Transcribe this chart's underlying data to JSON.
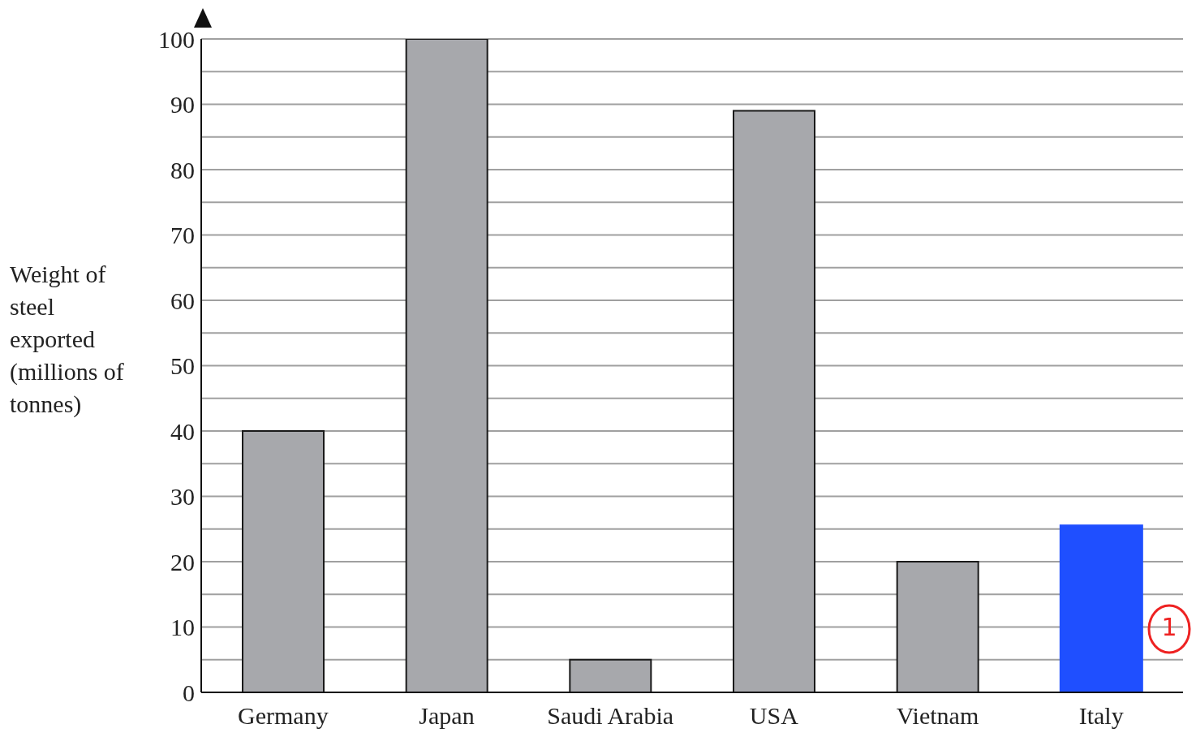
{
  "chart_data": {
    "type": "bar",
    "ylabel": "Weight of steel exported (millions of tonnes)",
    "categories": [
      "Germany",
      "Japan",
      "Saudi Arabia",
      "USA",
      "Vietnam",
      "Italy"
    ],
    "values": [
      40,
      100,
      5,
      89,
      20,
      25.5
    ],
    "colors": [
      "#a7a8ac",
      "#a7a8ac",
      "#a7a8ac",
      "#a7a8ac",
      "#a7a8ac",
      "#1f4fff"
    ],
    "ylim": [
      0,
      100
    ],
    "yticks": [
      0,
      {
        "value": 5,
        "label": null
      },
      10,
      {
        "value": 15,
        "label": null
      },
      20,
      {
        "value": 25,
        "label": null
      },
      30,
      {
        "value": 35,
        "label": null
      },
      40,
      {
        "value": 45,
        "label": null
      },
      50,
      {
        "value": 55,
        "label": null
      },
      60,
      {
        "value": 65,
        "label": null
      },
      70,
      {
        "value": 75,
        "label": null
      },
      80,
      {
        "value": 85,
        "label": null
      },
      90,
      {
        "value": 95,
        "label": null
      },
      100
    ],
    "grid": "y",
    "annotations": [
      "1"
    ]
  }
}
